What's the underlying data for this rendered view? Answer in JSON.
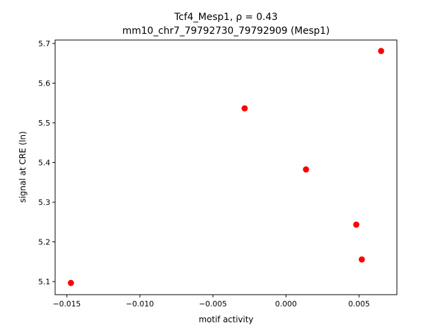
{
  "chart_data": {
    "type": "scatter",
    "title_line1": "Tcf4_Mesp1, ρ = 0.43",
    "title_line2": "mm10_chr7_79792730_79792909 (Mesp1)",
    "xlabel": "motif activity",
    "ylabel": "signal at CRE (ln)",
    "xlim": [
      -0.0158,
      0.00759
    ],
    "ylim": [
      5.067,
      5.7087
    ],
    "xticks": [
      -0.015,
      -0.01,
      -0.005,
      0.0,
      0.005
    ],
    "xtick_labels": [
      "−0.015",
      "−0.010",
      "−0.005",
      "0.000",
      "0.005"
    ],
    "yticks": [
      5.1,
      5.2,
      5.3,
      5.4,
      5.5,
      5.6,
      5.7
    ],
    "ytick_labels": [
      "5.1",
      "5.2",
      "5.3",
      "5.4",
      "5.5",
      "5.6",
      "5.7"
    ],
    "grid": false,
    "marker_color": "#ff0000",
    "points": [
      {
        "x": -0.01472,
        "y": 5.0965
      },
      {
        "x": -0.00283,
        "y": 5.5365
      },
      {
        "x": 0.00137,
        "y": 5.3826
      },
      {
        "x": 0.00481,
        "y": 5.2435
      },
      {
        "x": 0.00519,
        "y": 5.1557
      },
      {
        "x": 0.00651,
        "y": 5.681
      }
    ]
  }
}
